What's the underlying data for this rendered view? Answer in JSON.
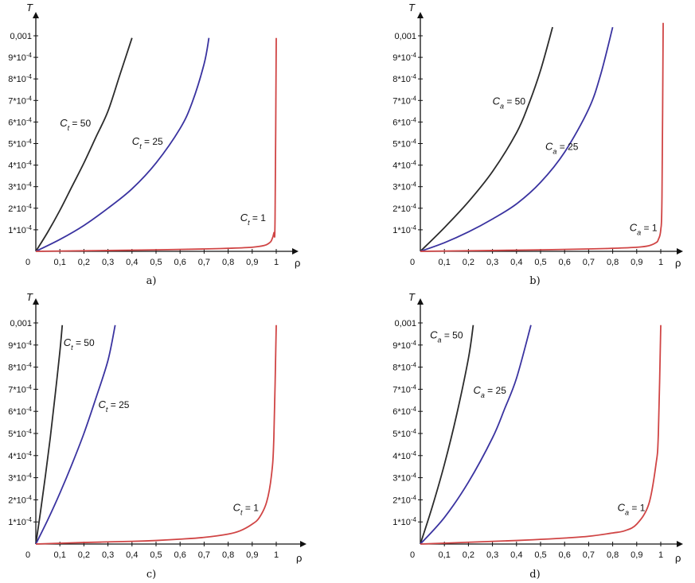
{
  "colors": {
    "axis": "#111111",
    "C50": "#2b2b2b",
    "C25": "#3a33a0",
    "C1": "#d04545"
  },
  "chart_data": [
    {
      "type": "line",
      "panel_label": "a)",
      "ylabel": "T",
      "xlabel": "ρ",
      "x_ticks": [
        "0",
        "0,1",
        "0,2",
        "0,3",
        "0,4",
        "0,5",
        "0,6",
        "0,7",
        "0,8",
        "0,9",
        "1"
      ],
      "y_ticks": [
        {
          "m": "1*10",
          "e": "-4"
        },
        {
          "m": "2*10",
          "e": "-4"
        },
        {
          "m": "3*10",
          "e": "-4"
        },
        {
          "m": "4*10",
          "e": "-4"
        },
        {
          "m": "5*10",
          "e": "-4"
        },
        {
          "m": "6*10",
          "e": "-4"
        },
        {
          "m": "7*10",
          "e": "-4"
        },
        {
          "m": "8*10",
          "e": "-4"
        },
        {
          "m": "9*10",
          "e": "-4"
        },
        {
          "m": "0,001",
          "e": ""
        }
      ],
      "xlim": [
        0,
        1.08
      ],
      "ylim": [
        0,
        0.00101
      ],
      "grid": false,
      "series": [
        {
          "key": "C50",
          "label_sym": "C",
          "label_sub": "t",
          "label_text": " = 50",
          "label_at": [
            0.1,
            0.00058
          ],
          "x": [
            0,
            0.05,
            0.1,
            0.15,
            0.2,
            0.25,
            0.3,
            0.35,
            0.4
          ],
          "y": [
            0,
            9e-05,
            0.00019,
            0.0003,
            0.00041,
            0.00053,
            0.00065,
            0.00082,
            0.00099
          ]
        },
        {
          "key": "C25",
          "label_sym": "C",
          "label_sub": "t",
          "label_text": " = 25",
          "label_at": [
            0.4,
            0.000495
          ],
          "x": [
            0,
            0.1,
            0.2,
            0.3,
            0.4,
            0.5,
            0.6,
            0.65,
            0.7,
            0.72
          ],
          "y": [
            0,
            5.5e-05,
            0.00012,
            0.0002,
            0.00029,
            0.00041,
            0.00057,
            0.00069,
            0.00087,
            0.00099
          ]
        },
        {
          "key": "C1",
          "label_sym": "C",
          "label_sub": "t",
          "label_text": " = 1",
          "label_at": [
            0.85,
            0.00014
          ],
          "x": [
            0,
            0.3,
            0.5,
            0.7,
            0.8,
            0.9,
            0.95,
            0.97,
            0.98,
            0.99,
            0.995,
            1.0
          ],
          "y": [
            0,
            4e-06,
            7e-06,
            1.1e-05,
            1.4e-05,
            1.9e-05,
            2.7e-05,
            3.8e-05,
            5e-05,
            8.5e-05,
            0.00015,
            0.00099
          ]
        }
      ]
    },
    {
      "type": "line",
      "panel_label": "b)",
      "ylabel": "T",
      "xlabel": "ρ",
      "x_ticks": [
        "0",
        "0,1",
        "0,2",
        "0,3",
        "0,4",
        "0,5",
        "0,6",
        "0,7",
        "0,8",
        "0,9",
        "1"
      ],
      "y_ticks": [
        {
          "m": "1*10",
          "e": "-4"
        },
        {
          "m": "2*10",
          "e": "-4"
        },
        {
          "m": "3*10",
          "e": "-4"
        },
        {
          "m": "4*10",
          "e": "-4"
        },
        {
          "m": "5*10",
          "e": "-4"
        },
        {
          "m": "6*10",
          "e": "-4"
        },
        {
          "m": "7*10",
          "e": "-4"
        },
        {
          "m": "8*10",
          "e": "-4"
        },
        {
          "m": "9*10",
          "e": "-4"
        },
        {
          "m": "0,001",
          "e": ""
        }
      ],
      "xlim": [
        0,
        1.08
      ],
      "ylim": [
        0,
        0.00101
      ],
      "grid": false,
      "series": [
        {
          "key": "C50",
          "label_sym": "C",
          "label_sub": "a",
          "label_text": " = 50",
          "label_at": [
            0.3,
            0.00068
          ],
          "x": [
            0,
            0.1,
            0.2,
            0.3,
            0.4,
            0.45,
            0.5,
            0.55
          ],
          "y": [
            0,
            0.00011,
            0.00023,
            0.00037,
            0.00055,
            0.00068,
            0.00084,
            0.00104
          ]
        },
        {
          "key": "C25",
          "label_sym": "C",
          "label_sub": "a",
          "label_text": " = 25",
          "label_at": [
            0.52,
            0.00047
          ],
          "x": [
            0,
            0.1,
            0.2,
            0.3,
            0.4,
            0.5,
            0.6,
            0.7,
            0.75,
            0.8
          ],
          "y": [
            0,
            4e-05,
            9e-05,
            0.00015,
            0.00022,
            0.00032,
            0.00046,
            0.00066,
            0.00082,
            0.00104
          ]
        },
        {
          "key": "C1",
          "label_sym": "C",
          "label_sub": "a",
          "label_text": " = 1",
          "label_at": [
            0.87,
            9.5e-05
          ],
          "x": [
            0,
            0.3,
            0.5,
            0.7,
            0.8,
            0.9,
            0.95,
            0.98,
            0.99,
            1.0,
            1.005,
            1.01
          ],
          "y": [
            0,
            4e-06,
            7e-06,
            1.1e-05,
            1.4e-05,
            1.9e-05,
            2.6e-05,
            4e-05,
            5.5e-05,
            0.0001,
            0.00025,
            0.00106
          ]
        }
      ]
    },
    {
      "type": "line",
      "panel_label": "c)",
      "ylabel": "T",
      "xlabel": "ρ",
      "x_ticks": [
        "0",
        "0,1",
        "0,2",
        "0,3",
        "0,4",
        "0,5",
        "0,6",
        "0,7",
        "0,8",
        "0,9",
        "1"
      ],
      "y_ticks": [
        {
          "m": "1*10",
          "e": "-4"
        },
        {
          "m": "2*10",
          "e": "-4"
        },
        {
          "m": "3*10",
          "e": "-4"
        },
        {
          "m": "4*10",
          "e": "-4"
        },
        {
          "m": "5*10",
          "e": "-4"
        },
        {
          "m": "6*10",
          "e": "-4"
        },
        {
          "m": "7*10",
          "e": "-4"
        },
        {
          "m": "8*10",
          "e": "-4"
        },
        {
          "m": "9*10",
          "e": "-4"
        },
        {
          "m": "0,001",
          "e": ""
        }
      ],
      "xlim": [
        0,
        1.08
      ],
      "ylim": [
        0,
        0.00101
      ],
      "grid": false,
      "series": [
        {
          "key": "C50",
          "label_sym": "C",
          "label_sub": "t",
          "label_text": " = 50",
          "label_at": [
            0.115,
            0.000895
          ],
          "x": [
            0,
            0.02,
            0.04,
            0.06,
            0.08,
            0.1,
            0.11
          ],
          "y": [
            0,
            0.00015,
            0.00031,
            0.00048,
            0.00067,
            0.00087,
            0.00099
          ]
        },
        {
          "key": "C25",
          "label_sym": "C",
          "label_sub": "t",
          "label_text": " = 25",
          "label_at": [
            0.26,
            0.000615
          ],
          "x": [
            0,
            0.05,
            0.1,
            0.15,
            0.2,
            0.25,
            0.3,
            0.33
          ],
          "y": [
            0,
            0.00011,
            0.00023,
            0.00036,
            0.0005,
            0.00066,
            0.00083,
            0.00099
          ]
        },
        {
          "key": "C1",
          "label_sym": "C",
          "label_sub": "t",
          "label_text": " = 1",
          "label_at": [
            0.82,
            0.00015
          ],
          "x": [
            0,
            0.2,
            0.4,
            0.5,
            0.6,
            0.7,
            0.8,
            0.85,
            0.9,
            0.93,
            0.96,
            0.98,
            0.99,
            1.0
          ],
          "y": [
            0,
            7e-06,
            1.2e-05,
            1.6e-05,
            2.2e-05,
            3e-05,
            4.5e-05,
            6e-05,
            9e-05,
            0.00012,
            0.00019,
            0.00031,
            0.00048,
            0.00099
          ]
        }
      ]
    },
    {
      "type": "line",
      "panel_label": "d)",
      "ylabel": "T",
      "xlabel": "ρ",
      "x_ticks": [
        "0",
        "0,1",
        "0,2",
        "0,3",
        "0,4",
        "0,5",
        "0,6",
        "0,7",
        "0,8",
        "0,9",
        "1"
      ],
      "y_ticks": [
        {
          "m": "1*10",
          "e": "-4"
        },
        {
          "m": "2*10",
          "e": "-4"
        },
        {
          "m": "3*10",
          "e": "-4"
        },
        {
          "m": "4*10",
          "e": "-4"
        },
        {
          "m": "5*10",
          "e": "-4"
        },
        {
          "m": "6*10",
          "e": "-4"
        },
        {
          "m": "7*10",
          "e": "-4"
        },
        {
          "m": "8*10",
          "e": "-4"
        },
        {
          "m": "9*10",
          "e": "-4"
        },
        {
          "m": "0,001",
          "e": ""
        }
      ],
      "xlim": [
        0,
        1.08
      ],
      "ylim": [
        0,
        0.00101
      ],
      "grid": false,
      "series": [
        {
          "key": "C50",
          "label_sym": "C",
          "label_sub": "a",
          "label_text": "  = 50",
          "label_at": [
            0.04,
            0.00093
          ],
          "x": [
            0,
            0.05,
            0.1,
            0.15,
            0.2,
            0.22
          ],
          "y": [
            0,
            0.00017,
            0.00036,
            0.00058,
            0.00084,
            0.00099
          ]
        },
        {
          "key": "C25",
          "label_sym": "C",
          "label_sub": "a",
          "label_text": " = 25",
          "label_at": [
            0.22,
            0.00068
          ],
          "x": [
            0,
            0.1,
            0.2,
            0.3,
            0.35,
            0.4,
            0.46
          ],
          "y": [
            0,
            0.00012,
            0.00028,
            0.00048,
            0.00061,
            0.00075,
            0.00099
          ]
        },
        {
          "key": "C1",
          "label_sym": "C",
          "label_sub": "a",
          "label_text": " = 1",
          "label_at": [
            0.82,
            0.00015
          ],
          "x": [
            0,
            0.2,
            0.4,
            0.5,
            0.6,
            0.7,
            0.8,
            0.85,
            0.9,
            0.95,
            0.98,
            0.99,
            1.0
          ],
          "y": [
            0,
            8e-06,
            1.6e-05,
            2.1e-05,
            2.7e-05,
            3.5e-05,
            5e-05,
            6e-05,
            9e-05,
            0.00018,
            0.00036,
            0.0005,
            0.00099
          ]
        }
      ]
    }
  ]
}
